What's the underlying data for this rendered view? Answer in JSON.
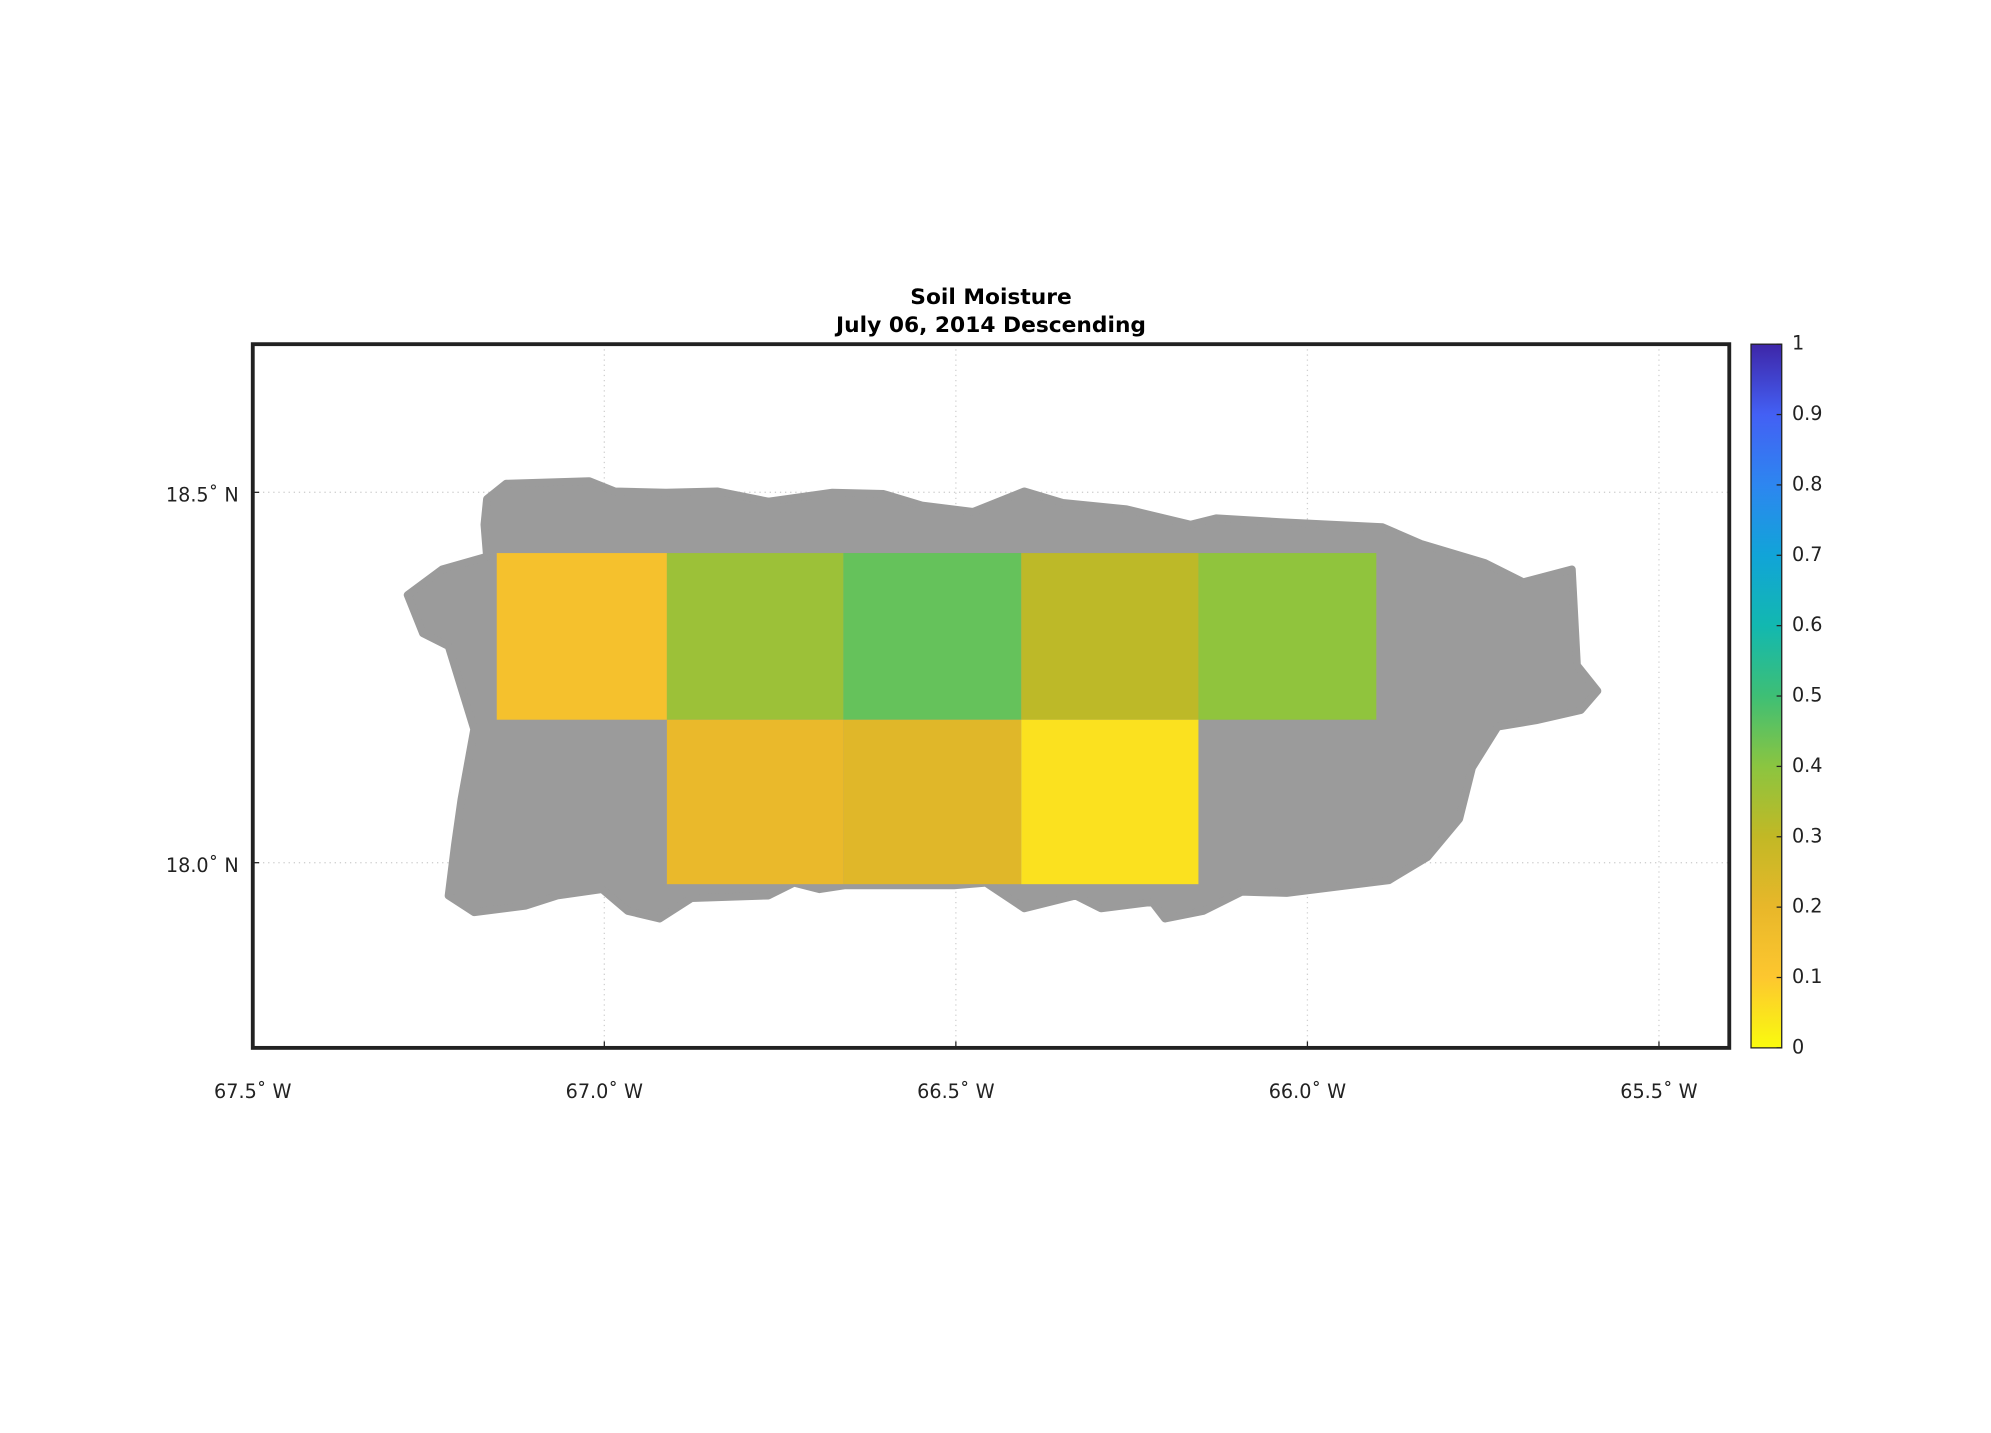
{
  "chart_data": {
    "type": "map-grid",
    "title": "Soil Moisture",
    "subtitle": "July 06, 2014 Descending",
    "xlim": [
      -67.5,
      -65.4
    ],
    "ylim": [
      17.75,
      18.7
    ],
    "xticks": [
      {
        "value": -67.5,
        "label": "67.5˚ W"
      },
      {
        "value": -67.0,
        "label": "67.0˚ W"
      },
      {
        "value": -66.5,
        "label": "66.5˚ W"
      },
      {
        "value": -66.0,
        "label": "66.0˚ W"
      },
      {
        "value": -65.5,
        "label": "65.5˚ W"
      }
    ],
    "yticks": [
      {
        "value": 18.0,
        "label": "18.0˚ N"
      },
      {
        "value": 18.5,
        "label": "18.5˚ N"
      }
    ],
    "grid": true,
    "land_color": "#9b9b9b",
    "cells": [
      {
        "lon": [
          -67.153,
          -66.911
        ],
        "lat": [
          18.193,
          18.418
        ],
        "value": 0.14
      },
      {
        "lon": [
          -66.911,
          -66.66
        ],
        "lat": [
          18.193,
          18.418
        ],
        "value": 0.37
      },
      {
        "lon": [
          -66.66,
          -66.407
        ],
        "lat": [
          18.193,
          18.418
        ],
        "value": 0.45
      },
      {
        "lon": [
          -66.407,
          -66.155
        ],
        "lat": [
          18.193,
          18.418
        ],
        "value": 0.31
      },
      {
        "lon": [
          -66.155,
          -65.902
        ],
        "lat": [
          18.193,
          18.418
        ],
        "value": 0.39
      },
      {
        "lon": [
          -66.911,
          -66.66
        ],
        "lat": [
          17.971,
          18.193
        ],
        "value": 0.19
      },
      {
        "lon": [
          -66.66,
          -66.407
        ],
        "lat": [
          17.971,
          18.193
        ],
        "value": 0.22
      },
      {
        "lon": [
          -66.407,
          -66.155
        ],
        "lat": [
          17.971,
          18.193
        ],
        "value": 0.05
      }
    ],
    "colorbar": {
      "lim": [
        0,
        1
      ],
      "ticks": [
        0,
        0.1,
        0.2,
        0.3,
        0.4,
        0.5,
        0.6,
        0.7,
        0.8,
        0.9,
        1
      ],
      "colormap": [
        "#f9fb0e",
        "#fdc72f",
        "#e8b72a",
        "#c2b825",
        "#8bc540",
        "#3ebf75",
        "#12b8b0",
        "#11a4d8",
        "#2d86f0",
        "#4360f4",
        "#3e26a8"
      ]
    }
  }
}
